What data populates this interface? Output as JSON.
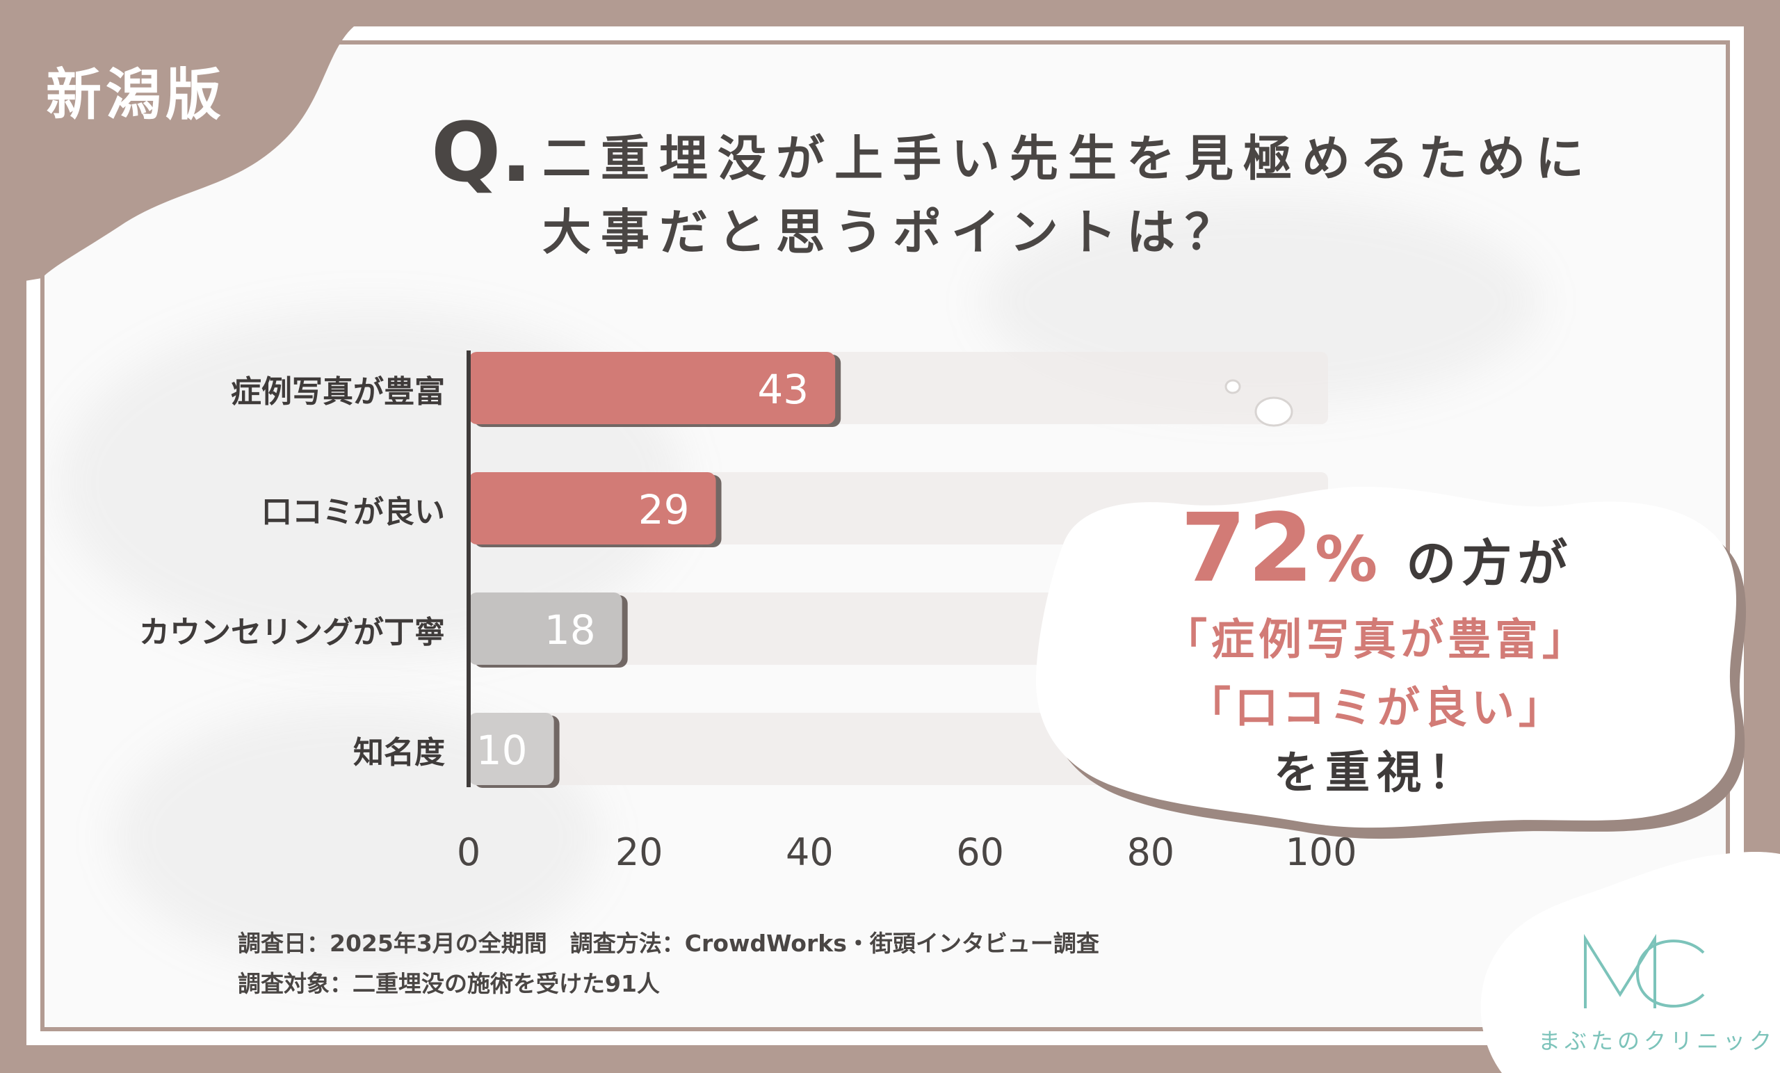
{
  "region_label": "新潟版",
  "question": {
    "mark": "Q.",
    "line1": "二重埋没が上手い先生を見極めるために",
    "line2": "大事だと思うポイントは？"
  },
  "chart_data": {
    "type": "bar",
    "orientation": "horizontal",
    "categories": [
      "症例写真が豊富",
      "口コミが良い",
      "カウンセリングが丁寧",
      "知名度"
    ],
    "values": [
      43,
      29,
      18,
      10
    ],
    "value_labels": [
      "43",
      "29",
      "18",
      "10"
    ],
    "xlim": [
      0,
      100
    ],
    "xticks": [
      "0",
      "20",
      "40",
      "60",
      "80",
      "100"
    ],
    "bar_colors": [
      "#d27b76",
      "#d27b76",
      "#c4c2c1",
      "#cfcdcc"
    ],
    "grid": false,
    "title": "",
    "xlabel": "",
    "ylabel": ""
  },
  "callout": {
    "percent": "72",
    "percent_sign": "%",
    "line1_rest": "の方が",
    "quote1": "「症例写真が豊富」",
    "quote2": "「口コミが良い」",
    "ending": "を重視！"
  },
  "footnotes": {
    "line1": "調査日：2025年3月の全期間　調査方法：CrowdWorks・街頭インタビュー調査",
    "line2": "調査対象：二重埋没の施術を受けた91人"
  },
  "logo": {
    "mark": "MC",
    "name": "まぶたのクリニック"
  },
  "colors": {
    "frame": "#b29b92",
    "accent": "#d27b76",
    "gray_bar": "#c4c2c1",
    "text": "#4a4644",
    "logo": "#7cc3ba"
  }
}
